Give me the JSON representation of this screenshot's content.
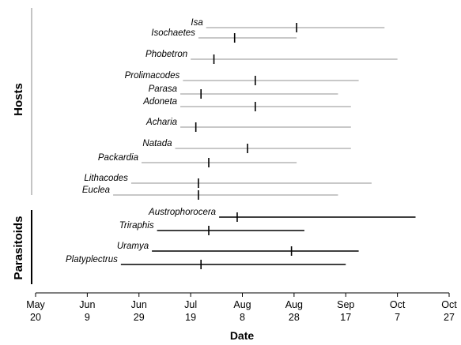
{
  "chart_data": {
    "type": "range",
    "xlabel": "Date",
    "x_ticks": [
      {
        "line1": "May",
        "line2": "20",
        "date": "05-20"
      },
      {
        "line1": "Jun",
        "line2": "9",
        "date": "06-09"
      },
      {
        "line1": "Jun",
        "line2": "29",
        "date": "06-29"
      },
      {
        "line1": "Jul",
        "line2": "19",
        "date": "07-19"
      },
      {
        "line1": "Aug",
        "line2": "8",
        "date": "08-08"
      },
      {
        "line1": "Aug",
        "line2": "28",
        "date": "08-28"
      },
      {
        "line1": "Sep",
        "line2": "17",
        "date": "09-17"
      },
      {
        "line1": "Oct",
        "line2": "7",
        "date": "10-07"
      },
      {
        "line1": "Oct",
        "line2": "27",
        "date": "10-27"
      }
    ],
    "xlim": [
      "05-20",
      "10-27"
    ],
    "groups": [
      {
        "label": "Hosts",
        "color": "#c8c8c8",
        "series": [
          {
            "name": "Isa",
            "start": "07-25",
            "end": "10-02",
            "peak": "08-29"
          },
          {
            "name": "Isochaetes",
            "start": "07-22",
            "end": "08-29",
            "peak": "08-05"
          },
          {
            "name": "Phobetron",
            "start": "07-19",
            "end": "10-07",
            "peak": "07-28"
          },
          {
            "name": "Prolimacodes",
            "start": "07-16",
            "end": "09-22",
            "peak": "08-13"
          },
          {
            "name": "Parasa",
            "start": "07-15",
            "end": "09-14",
            "peak": "07-23"
          },
          {
            "name": "Adoneta",
            "start": "07-15",
            "end": "09-19",
            "peak": "08-13"
          },
          {
            "name": "Acharia",
            "start": "07-15",
            "end": "09-19",
            "peak": "07-21"
          },
          {
            "name": "Natada",
            "start": "07-13",
            "end": "09-19",
            "peak": "08-10"
          },
          {
            "name": "Packardia",
            "start": "06-30",
            "end": "08-29",
            "peak": "07-26"
          },
          {
            "name": "Lithacodes",
            "start": "06-26",
            "end": "09-27",
            "peak": "07-22"
          },
          {
            "name": "Euclea",
            "start": "06-19",
            "end": "09-14",
            "peak": "07-22"
          }
        ]
      },
      {
        "label": "Parasitoids",
        "color": "#000000",
        "series": [
          {
            "name": "Austrophorocera",
            "start": "07-30",
            "end": "10-14",
            "peak": "08-06"
          },
          {
            "name": "Triraphis",
            "start": "07-06",
            "end": "09-01",
            "peak": "07-26"
          },
          {
            "name": "Uramya",
            "start": "07-04",
            "end": "09-22",
            "peak": "08-27"
          },
          {
            "name": "Platyplectrus",
            "start": "06-22",
            "end": "09-17",
            "peak": "07-23"
          }
        ]
      }
    ]
  }
}
